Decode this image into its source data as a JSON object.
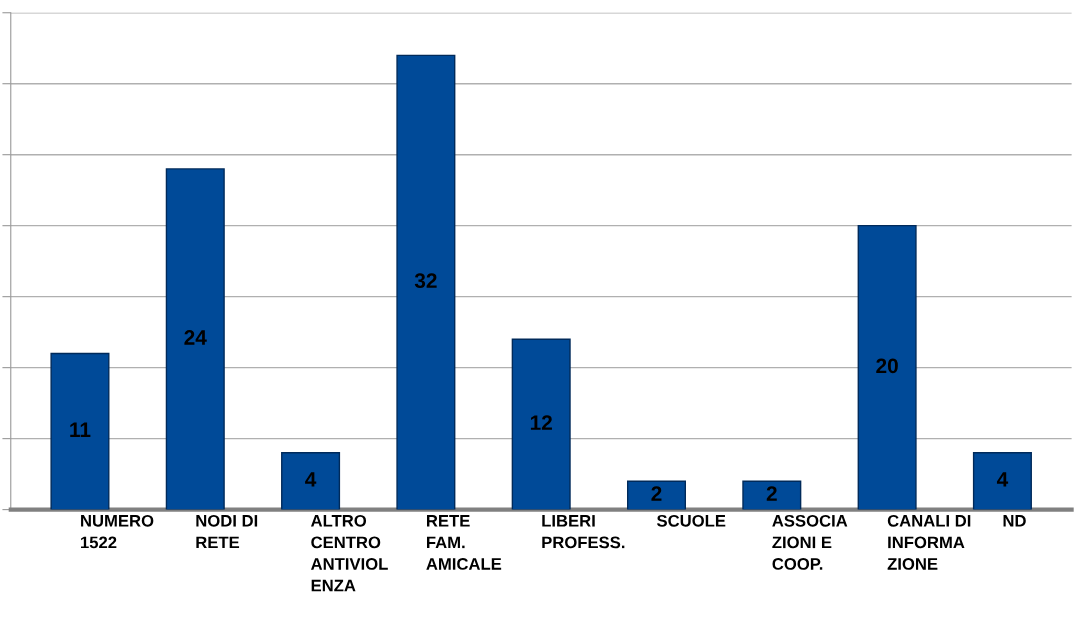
{
  "chart_data": {
    "type": "bar",
    "categories": [
      "NUMERO\n1522",
      "NODI DI\nRETE",
      "ALTRO\nCENTRO\nANTIVIOL\nENZA",
      "RETE\nFAM.\nAMICALE",
      "LIBERI\nPROFESS.",
      "SCUOLE",
      "ASSOCIA\nZIONI E\nCOOP.",
      "CANALI DI\nINFORMA\nZIONE",
      "ND"
    ],
    "values": [
      11,
      24,
      4,
      32,
      12,
      2,
      2,
      20,
      4
    ],
    "color": "#004a98",
    "ylim": [
      0,
      35
    ],
    "yticks": [
      {
        "value": 0,
        "label": null
      },
      {
        "value": 5,
        "label": null
      },
      {
        "value": 10,
        "label": null
      },
      {
        "value": 15,
        "label": null
      },
      {
        "value": 20,
        "label": null
      },
      {
        "value": 25,
        "label": null
      },
      {
        "value": 30,
        "label": null
      },
      {
        "value": 35,
        "label": null
      }
    ],
    "tick_labels": "x",
    "grid": "y",
    "data_labels": true
  }
}
